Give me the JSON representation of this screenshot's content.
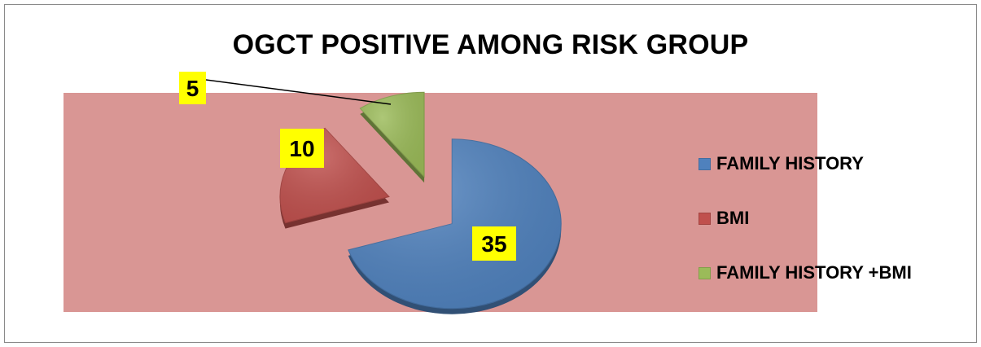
{
  "chart_data": {
    "type": "pie",
    "title": "OGCT POSITIVE AMONG RISK GROUP",
    "categories": [
      "FAMILY HISTORY",
      "BMI",
      "FAMILY HISTORY +BMI"
    ],
    "values": [
      35,
      10,
      5
    ],
    "data_labels": [
      "35",
      "10",
      "5"
    ],
    "colors": [
      "#4f81bd",
      "#c0504d",
      "#9bbb59"
    ],
    "plot_area_color": "#d99694",
    "data_label_background": "#ffff00",
    "legend_position": "right",
    "exploded": true,
    "style": "3d"
  }
}
